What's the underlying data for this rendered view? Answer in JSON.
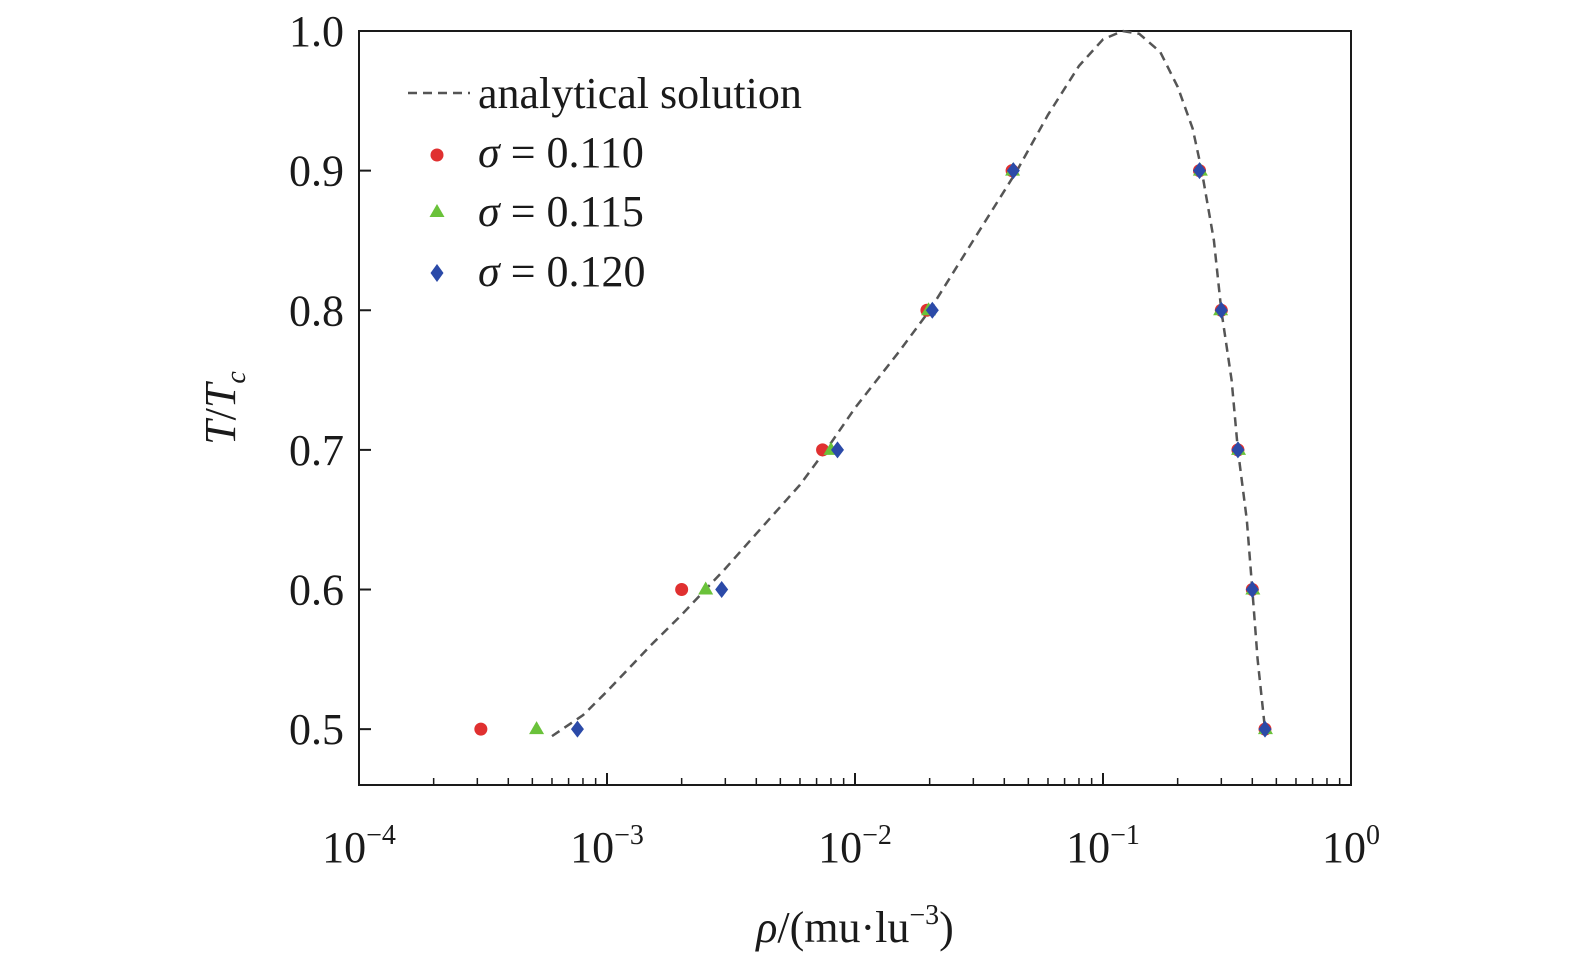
{
  "chart_data": {
    "type": "scatter",
    "x_scale": "log",
    "xlim": [
      0.0001,
      1
    ],
    "ylim": [
      0.46,
      1.0
    ],
    "x_ticks": [
      {
        "value": 0.0001,
        "base": "10",
        "exp": "−4"
      },
      {
        "value": 0.001,
        "base": "10",
        "exp": "−3"
      },
      {
        "value": 0.01,
        "base": "10",
        "exp": "−2"
      },
      {
        "value": 0.1,
        "base": "10",
        "exp": "−1"
      },
      {
        "value": 1,
        "base": "10",
        "exp": "0"
      }
    ],
    "y_ticks": [
      {
        "value": 0.5,
        "label": "0.5"
      },
      {
        "value": 0.6,
        "label": "0.6"
      },
      {
        "value": 0.7,
        "label": "0.7"
      },
      {
        "value": 0.8,
        "label": "0.8"
      },
      {
        "value": 0.9,
        "label": "0.9"
      },
      {
        "value": 1.0,
        "label": "1.0"
      }
    ],
    "xlabel": {
      "symbol": "ρ",
      "text": "/(mu·lu",
      "exp": "−3",
      "close": ")"
    },
    "ylabel": {
      "T": "T",
      "slash": "/",
      "Tc": "T",
      "sub": "c"
    },
    "grid": false,
    "legend_position": "top-left",
    "series": [
      {
        "name": "analytical solution",
        "style": "dashed-line",
        "color": "#555555",
        "points": [
          [
            0.0006,
            0.495
          ],
          [
            0.0008,
            0.51
          ],
          [
            0.001,
            0.527
          ],
          [
            0.0015,
            0.56
          ],
          [
            0.002,
            0.582
          ],
          [
            0.003,
            0.615
          ],
          [
            0.004,
            0.64
          ],
          [
            0.006,
            0.675
          ],
          [
            0.008,
            0.705
          ],
          [
            0.01,
            0.73
          ],
          [
            0.015,
            0.77
          ],
          [
            0.02,
            0.8
          ],
          [
            0.03,
            0.85
          ],
          [
            0.045,
            0.9
          ],
          [
            0.06,
            0.94
          ],
          [
            0.08,
            0.975
          ],
          [
            0.1,
            0.994
          ],
          [
            0.12,
            1.0
          ],
          [
            0.14,
            0.998
          ],
          [
            0.17,
            0.985
          ],
          [
            0.2,
            0.96
          ],
          [
            0.23,
            0.93
          ],
          [
            0.25,
            0.9
          ],
          [
            0.28,
            0.85
          ],
          [
            0.3,
            0.8
          ],
          [
            0.33,
            0.75
          ],
          [
            0.35,
            0.7
          ],
          [
            0.38,
            0.65
          ],
          [
            0.4,
            0.6
          ],
          [
            0.42,
            0.55
          ],
          [
            0.45,
            0.5
          ]
        ]
      },
      {
        "name": "σ = 0.110",
        "legend_symbol": "σ",
        "legend_value": " = 0.110",
        "marker": "circle",
        "color": "#e03030",
        "points": [
          [
            0.00031,
            0.5
          ],
          [
            0.002,
            0.6
          ],
          [
            0.0074,
            0.7
          ],
          [
            0.0195,
            0.8
          ],
          [
            0.043,
            0.9
          ],
          [
            0.245,
            0.9
          ],
          [
            0.3,
            0.8
          ],
          [
            0.35,
            0.7
          ],
          [
            0.4,
            0.6
          ],
          [
            0.45,
            0.5
          ]
        ]
      },
      {
        "name": "σ = 0.115",
        "legend_symbol": "σ",
        "legend_value": " = 0.115",
        "marker": "triangle",
        "color": "#6ac23a",
        "points": [
          [
            0.00052,
            0.5
          ],
          [
            0.0025,
            0.6
          ],
          [
            0.008,
            0.7
          ],
          [
            0.0198,
            0.8
          ],
          [
            0.0432,
            0.9
          ],
          [
            0.247,
            0.9
          ],
          [
            0.298,
            0.8
          ],
          [
            0.352,
            0.7
          ],
          [
            0.402,
            0.6
          ],
          [
            0.452,
            0.5
          ]
        ]
      },
      {
        "name": "σ = 0.120",
        "legend_symbol": "σ",
        "legend_value": " = 0.120",
        "marker": "diamond",
        "color": "#2b4aa8",
        "points": [
          [
            0.00076,
            0.5
          ],
          [
            0.0029,
            0.6
          ],
          [
            0.0085,
            0.7
          ],
          [
            0.0205,
            0.8
          ],
          [
            0.0435,
            0.9
          ],
          [
            0.245,
            0.9
          ],
          [
            0.3,
            0.8
          ],
          [
            0.35,
            0.7
          ],
          [
            0.4,
            0.6
          ],
          [
            0.45,
            0.5
          ]
        ]
      }
    ]
  }
}
